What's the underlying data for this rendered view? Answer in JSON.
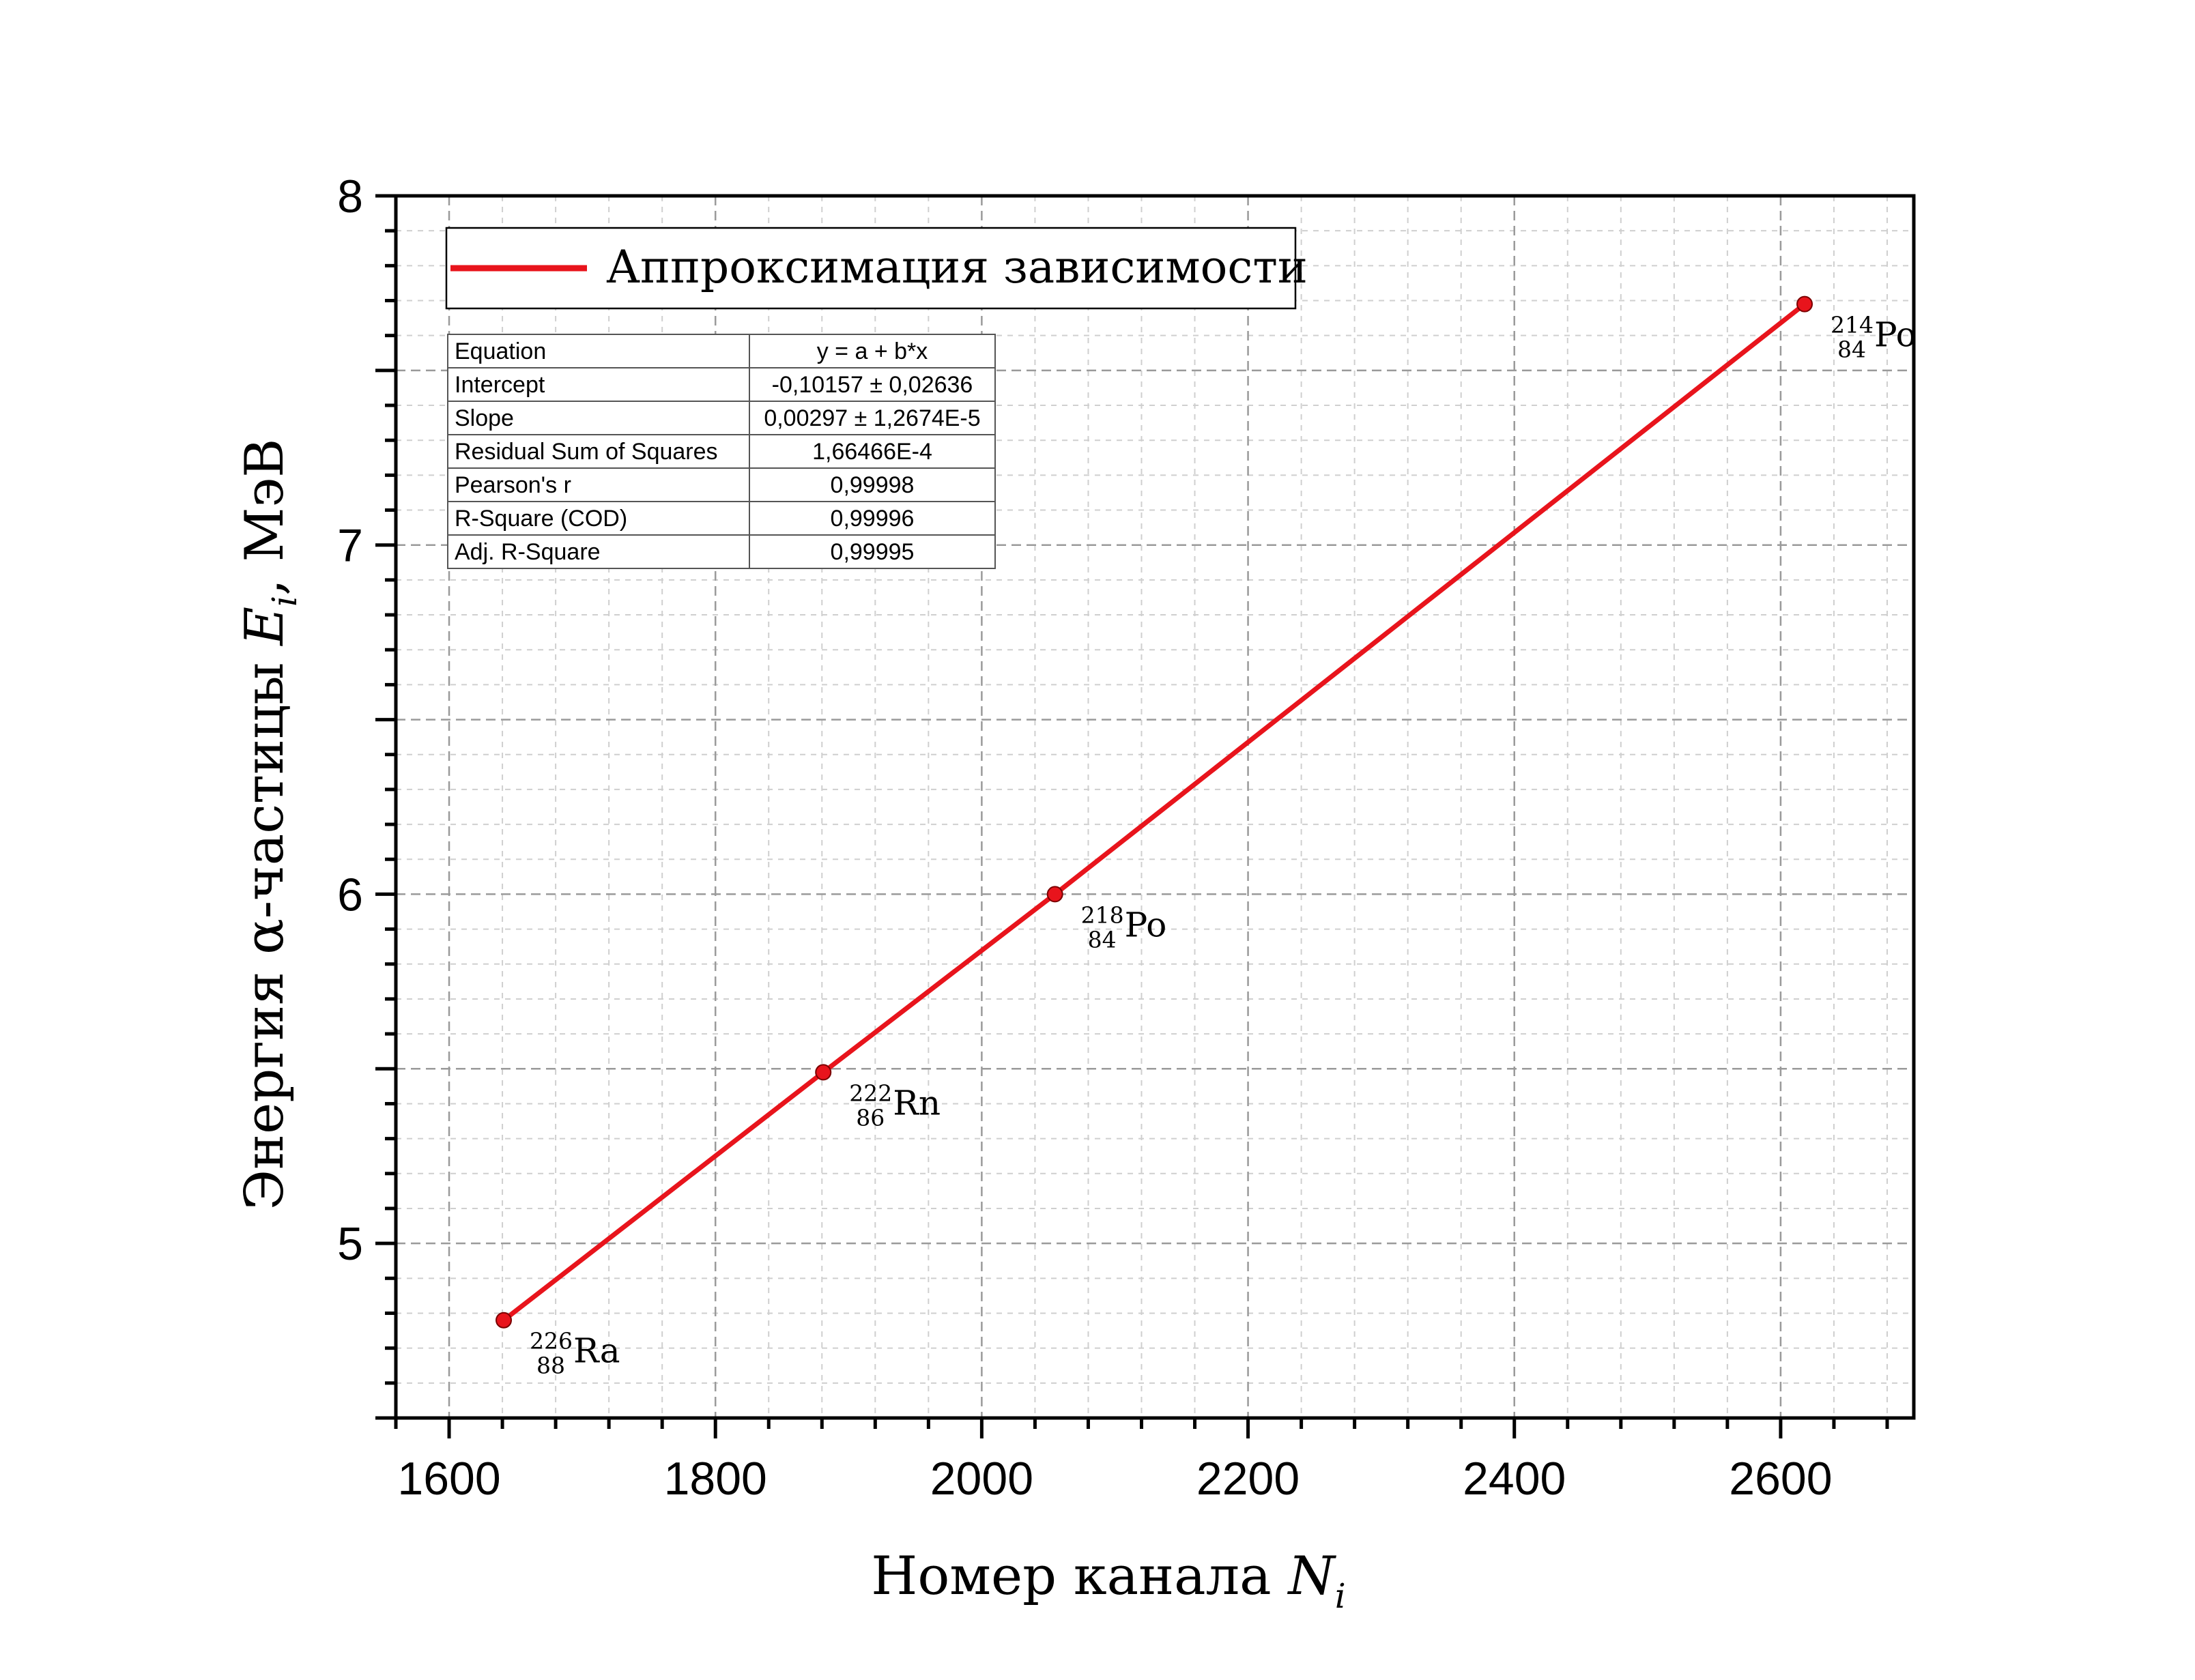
{
  "chart_data": {
    "type": "line",
    "title": "",
    "xlabel": "Номер канала",
    "xlabel_symbol": "N",
    "xlabel_sub": "i",
    "ylabel": "Энергия α-частицы",
    "ylabel_symbol": "E",
    "ylabel_sub": "i",
    "ylabel_unit": ", МэВ",
    "xlim": [
      1560,
      2700
    ],
    "ylim": [
      4.5,
      8.0
    ],
    "xticks": [
      1600,
      1800,
      2000,
      2200,
      2400,
      2600
    ],
    "yticks": [
      5,
      6,
      7,
      8
    ],
    "grid": true,
    "line_color": "#e8141c",
    "series": [
      {
        "name": "Аппроксимация зависимости",
        "x": [
          1641,
          1881,
          2055,
          2618
        ],
        "y": [
          4.78,
          5.49,
          6.0,
          7.69
        ]
      }
    ],
    "point_labels": [
      {
        "mass": "226",
        "z": "88",
        "sym": "Ra"
      },
      {
        "mass": "222",
        "z": "86",
        "sym": "Rn"
      },
      {
        "mass": "218",
        "z": "84",
        "sym": "Po"
      },
      {
        "mass": "214",
        "z": "84",
        "sym": "Po"
      }
    ],
    "legend": {
      "label": "Аппроксимация зависимости",
      "position": "top-left"
    },
    "fit_table": [
      {
        "key": "Equation",
        "value": "y = a + b*x"
      },
      {
        "key": "Intercept",
        "value": "-0,10157 ± 0,02636"
      },
      {
        "key": "Slope",
        "value": "0,00297 ± 1,2674E-5"
      },
      {
        "key": "Residual Sum of Squares",
        "value": "1,66466E-4"
      },
      {
        "key": "Pearson's r",
        "value": "0,99998"
      },
      {
        "key": "R-Square (COD)",
        "value": "0,99996"
      },
      {
        "key": "Adj. R-Square",
        "value": "0,99995"
      }
    ]
  }
}
